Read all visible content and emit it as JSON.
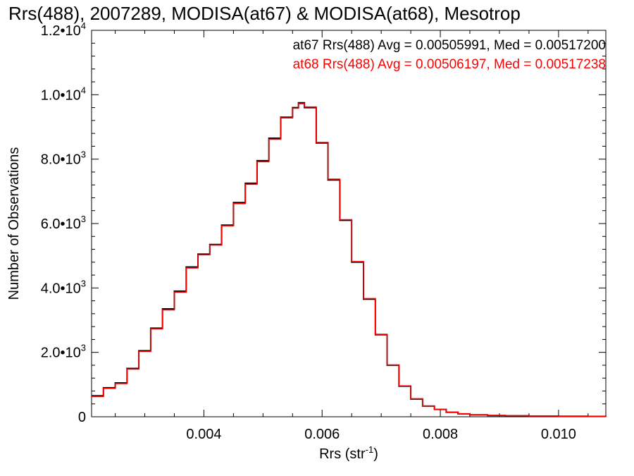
{
  "chart_data": {
    "type": "line",
    "title": "Rrs(488), 2007289, MODISA(at67) & MODISA(at68), Mesotrop",
    "xlabel": "Rrs (str",
    "xlabel_sup": "-1",
    "xlabel_close": ")",
    "ylabel": "Number of Observations",
    "xlim": [
      0.0021,
      0.0108
    ],
    "ylim": [
      0,
      12000
    ],
    "x_ticks": [
      {
        "value": 0.004,
        "label": "0.004"
      },
      {
        "value": 0.006,
        "label": "0.006"
      },
      {
        "value": 0.008,
        "label": "0.008"
      },
      {
        "value": 0.01,
        "label": "0.010"
      }
    ],
    "y_ticks": [
      {
        "value": 0,
        "mant": "0",
        "exp": ""
      },
      {
        "value": 2000,
        "mant": "2.0•10",
        "exp": "3"
      },
      {
        "value": 4000,
        "mant": "4.0•10",
        "exp": "3"
      },
      {
        "value": 6000,
        "mant": "6.0•10",
        "exp": "3"
      },
      {
        "value": 8000,
        "mant": "8.0•10",
        "exp": "3"
      },
      {
        "value": 10000,
        "mant": "1.0•10",
        "exp": "4"
      },
      {
        "value": 12000,
        "mant": "1.2•10",
        "exp": "4"
      }
    ],
    "grid": false,
    "x": [
      0.0021,
      0.0023,
      0.0025,
      0.0027,
      0.0029,
      0.0031,
      0.0033,
      0.0035,
      0.0037,
      0.0039,
      0.0041,
      0.0043,
      0.0045,
      0.0047,
      0.0049,
      0.0051,
      0.0053,
      0.0055,
      0.0056,
      0.0057,
      0.0059,
      0.0061,
      0.0063,
      0.0065,
      0.0067,
      0.0069,
      0.0071,
      0.0073,
      0.0075,
      0.0077,
      0.0079,
      0.0081,
      0.0083,
      0.0085,
      0.0088,
      0.0091,
      0.0095,
      0.01,
      0.0105,
      0.0108
    ],
    "series": [
      {
        "name": "at67",
        "color": "#000000",
        "values": [
          650,
          900,
          1050,
          1500,
          2050,
          2750,
          3350,
          3900,
          4650,
          5050,
          5350,
          5950,
          6650,
          7250,
          7950,
          8650,
          9300,
          9600,
          9750,
          9600,
          8500,
          7350,
          6100,
          4800,
          3650,
          2550,
          1600,
          950,
          550,
          330,
          230,
          140,
          90,
          60,
          40,
          30,
          20,
          15,
          10,
          8
        ]
      },
      {
        "name": "at68",
        "color": "#ff0000",
        "values": [
          630,
          880,
          1030,
          1480,
          2030,
          2730,
          3320,
          3870,
          4620,
          5030,
          5330,
          5930,
          6620,
          7220,
          7920,
          8620,
          9280,
          9580,
          9720,
          9620,
          8520,
          7380,
          6120,
          4820,
          3670,
          2560,
          1610,
          960,
          560,
          335,
          235,
          145,
          92,
          62,
          42,
          31,
          21,
          16,
          11,
          9
        ]
      }
    ],
    "annotations": [
      {
        "text": "at67 Rrs(488) Avg = 0.00505991, Med = 0.00517200",
        "color": "#000000"
      },
      {
        "text": "at68 Rrs(488) Avg = 0.00506197, Med = 0.00517238",
        "color": "#ff0000"
      }
    ]
  }
}
